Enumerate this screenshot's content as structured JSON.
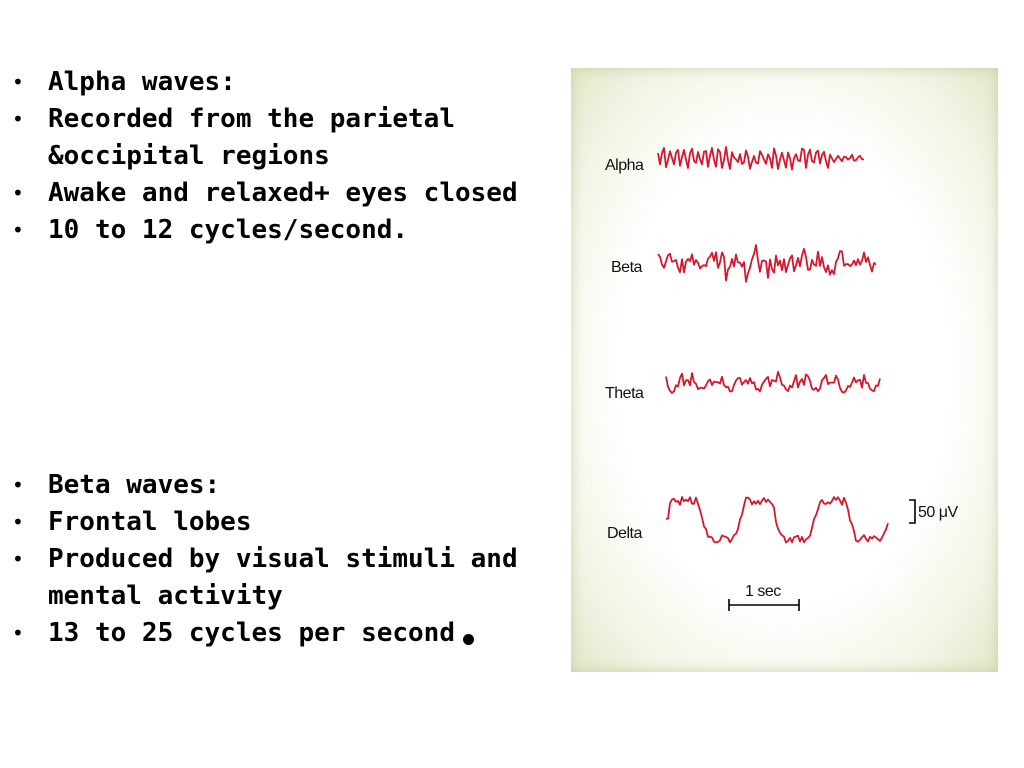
{
  "alpha_section": {
    "bullets": [
      "Alpha waves:",
      "Recorded from the parietal &occipital regions",
      "Awake and relaxed+ eyes closed",
      "10 to 12 cycles/second."
    ]
  },
  "beta_section": {
    "bullets": [
      "Beta waves:",
      "Frontal lobes",
      "Produced by visual stimuli and mental activity",
      "13 to 25 cycles per second"
    ]
  },
  "figure": {
    "wave_labels": [
      "Alpha",
      "Beta",
      "Theta",
      "Delta"
    ],
    "amplitude_scale_label": "50 μV",
    "time_scale_label": "1 sec",
    "trace_color": "#d8162b"
  }
}
